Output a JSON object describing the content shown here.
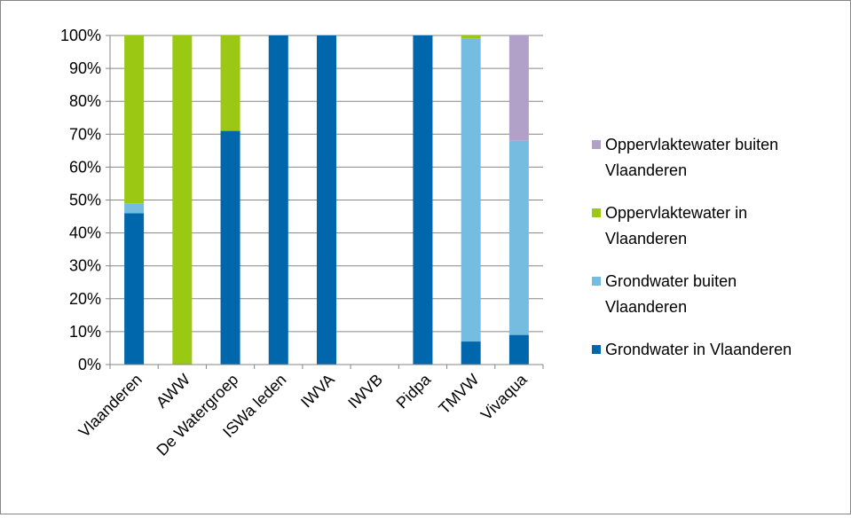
{
  "chart_data": {
    "type": "bar",
    "stacked": true,
    "percent_stacked": true,
    "title": "",
    "xlabel": "",
    "ylabel": "",
    "ylim": [
      0,
      100
    ],
    "y_ticks": [
      "0%",
      "10%",
      "20%",
      "30%",
      "40%",
      "50%",
      "60%",
      "70%",
      "80%",
      "90%",
      "100%"
    ],
    "grid": "horizontal",
    "legend_position": "right",
    "categories": [
      "Vlaanderen",
      "AWW",
      "De Watergroep",
      "ISWa leden",
      "IWVA",
      "IWVB",
      "Pidpa",
      "TMVW",
      "Vivaqua"
    ],
    "series": [
      {
        "name": "Grondwater in Vlaanderen",
        "color": "#0067AC",
        "values": [
          46,
          0,
          71,
          100,
          100,
          0,
          100,
          7,
          9
        ]
      },
      {
        "name": "Grondwater buiten Vlaanderen",
        "color": "#75BDE0",
        "values": [
          3,
          0,
          0,
          0,
          0,
          0,
          0,
          92,
          59
        ]
      },
      {
        "name": "Oppervlaktewater in Vlaanderen",
        "color": "#9BC813",
        "values": [
          51,
          100,
          29,
          0,
          0,
          0,
          0,
          1,
          0
        ]
      },
      {
        "name": "Oppervlaktewater buiten Vlaanderen",
        "color": "#B1A0C7",
        "values": [
          0,
          0,
          0,
          0,
          0,
          0,
          0,
          0,
          32
        ]
      }
    ],
    "legend_entries": [
      {
        "line1": "Oppervlaktewater buiten",
        "line2": "Vlaanderen",
        "color": "#B1A0C7"
      },
      {
        "line1": "Oppervlaktewater in",
        "line2": "Vlaanderen",
        "color": "#9BC813"
      },
      {
        "line1": "Grondwater buiten",
        "line2": "Vlaanderen",
        "color": "#75BDE0"
      },
      {
        "line1": "Grondwater in Vlaanderen",
        "line2": "",
        "color": "#0067AC"
      }
    ],
    "gridline_color": "#868686"
  }
}
